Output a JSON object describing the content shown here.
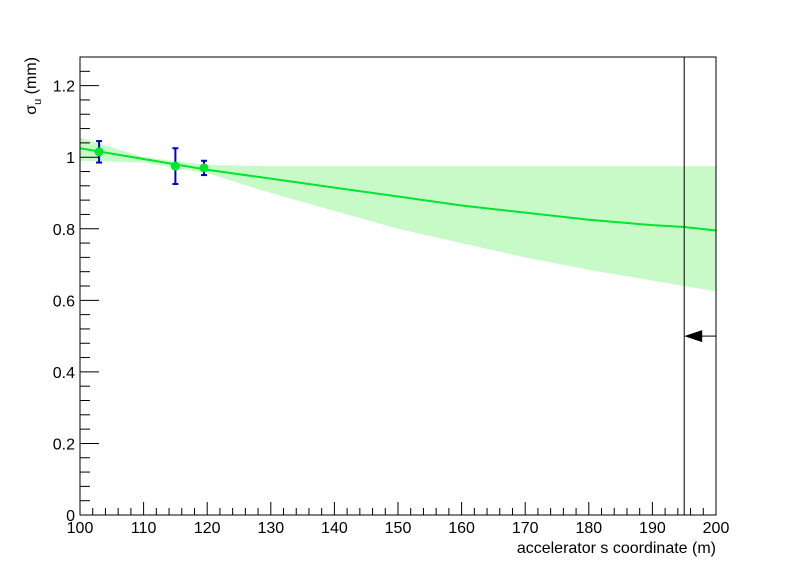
{
  "chart_data": {
    "type": "scatter",
    "title": "",
    "xlabel": "accelerator s coordinate (m)",
    "ylabel": {
      "main": "σ",
      "sub": "u",
      "unit": " (mm)"
    },
    "xlim": [
      100,
      200
    ],
    "ylim": [
      0,
      1.28
    ],
    "grid": false,
    "x_ticks": [
      100,
      110,
      120,
      130,
      140,
      150,
      160,
      170,
      180,
      190,
      200
    ],
    "x_tick_labels": [
      "100",
      "110",
      "120",
      "130",
      "140",
      "150",
      "160",
      "170",
      "180",
      "190",
      "200"
    ],
    "y_ticks": [
      0,
      0.2,
      0.4,
      0.6,
      0.8,
      1.0,
      1.2
    ],
    "y_tick_labels": [
      "0",
      "0.2",
      "0.4",
      "0.6",
      "0.8",
      "1",
      "1.2"
    ],
    "series": [
      {
        "kind": "points",
        "color": "#00e52e",
        "error_bar_color": "#0000cc",
        "points": [
          {
            "x": 103,
            "y": 1.015,
            "err": 0.03
          },
          {
            "x": 115,
            "y": 0.975,
            "err": 0.05
          },
          {
            "x": 119.5,
            "y": 0.97,
            "err": 0.02
          }
        ]
      },
      {
        "kind": "fit_line",
        "color": "#00e52e",
        "x": [
          100,
          110,
          120,
          130,
          140,
          150,
          160,
          170,
          180,
          190,
          195,
          200
        ],
        "y": [
          1.025,
          0.995,
          0.965,
          0.94,
          0.915,
          0.89,
          0.865,
          0.845,
          0.825,
          0.81,
          0.805,
          0.795
        ]
      },
      {
        "kind": "confidence_band",
        "color": "#c8fac8",
        "x": [
          100,
          110,
          120,
          130,
          140,
          150,
          160,
          170,
          180,
          190,
          200
        ],
        "upper": [
          1.055,
          1.0,
          0.978,
          0.975,
          0.975,
          0.975,
          0.975,
          0.975,
          0.975,
          0.975,
          0.975
        ],
        "lower": [
          0.99,
          0.985,
          0.955,
          0.9,
          0.85,
          0.8,
          0.76,
          0.72,
          0.685,
          0.655,
          0.625
        ]
      }
    ],
    "annotations": [
      {
        "kind": "vertical_line",
        "x": 195,
        "color": "#000000"
      },
      {
        "kind": "arrow",
        "from_x": 200,
        "to_x": 195,
        "y": 0.5,
        "color": "#000000"
      }
    ]
  }
}
